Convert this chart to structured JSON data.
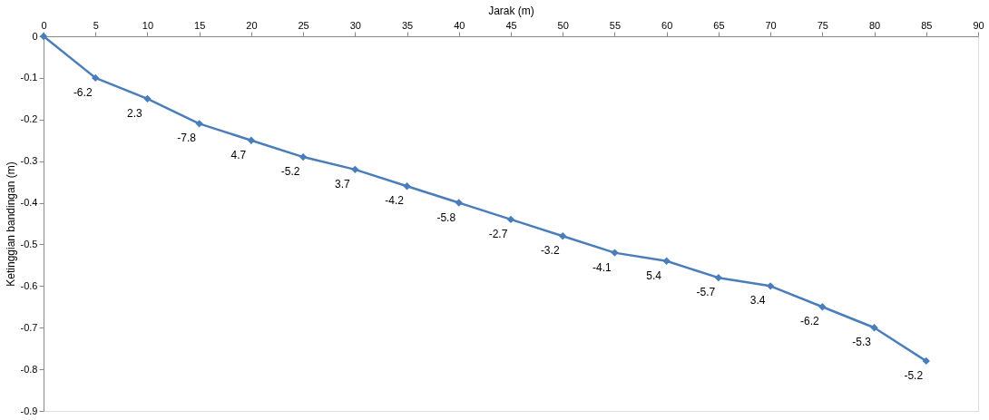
{
  "chart_data": {
    "type": "line",
    "xlabel": "Jarak (m)",
    "ylabel": "Ketinggian bandingan (m)",
    "x": [
      0,
      5,
      10,
      15,
      20,
      25,
      30,
      35,
      40,
      45,
      50,
      55,
      60,
      65,
      70,
      75,
      80,
      85
    ],
    "series": [
      {
        "color": "#4a7ebb",
        "values": [
          0,
          -0.1,
          -0.15,
          -0.21,
          -0.25,
          -0.29,
          -0.32,
          -0.36,
          -0.4,
          -0.44,
          -0.48,
          -0.52,
          -0.54,
          -0.58,
          -0.6,
          -0.65,
          -0.7,
          -0.78
        ]
      }
    ],
    "annotations": [
      {
        "text": "-6.2",
        "x": 5,
        "y": -0.1
      },
      {
        "text": "2.3",
        "x": 10,
        "y": -0.15
      },
      {
        "text": "-7.8",
        "x": 15,
        "y": -0.21
      },
      {
        "text": "4.7",
        "x": 20,
        "y": -0.25
      },
      {
        "text": "-5.2",
        "x": 25,
        "y": -0.29
      },
      {
        "text": "3.7",
        "x": 30,
        "y": -0.32
      },
      {
        "text": "-4.2",
        "x": 35,
        "y": -0.36
      },
      {
        "text": "-5.8",
        "x": 40,
        "y": -0.4
      },
      {
        "text": "-2.7",
        "x": 45,
        "y": -0.44
      },
      {
        "text": "-3.2",
        "x": 50,
        "y": -0.48
      },
      {
        "text": "-4.1",
        "x": 55,
        "y": -0.52
      },
      {
        "text": "5.4",
        "x": 60,
        "y": -0.54
      },
      {
        "text": "-5.7",
        "x": 65,
        "y": -0.58
      },
      {
        "text": "3.4",
        "x": 70,
        "y": -0.6
      },
      {
        "text": "-6.2",
        "x": 75,
        "y": -0.65
      },
      {
        "text": "-5.3",
        "x": 80,
        "y": -0.7
      },
      {
        "text": "-5.2",
        "x": 85,
        "y": -0.78
      }
    ],
    "xlim": [
      0,
      90
    ],
    "xticks": [
      0,
      5,
      10,
      15,
      20,
      25,
      30,
      35,
      40,
      45,
      50,
      55,
      60,
      65,
      70,
      75,
      80,
      85,
      90
    ],
    "ylim": [
      -0.9,
      0
    ],
    "yticks": [
      0,
      -0.1,
      -0.2,
      -0.3,
      -0.4,
      -0.5,
      -0.6,
      -0.7,
      -0.8,
      -0.9
    ],
    "marker": "diamond",
    "line_style": "solid",
    "grid": false
  }
}
